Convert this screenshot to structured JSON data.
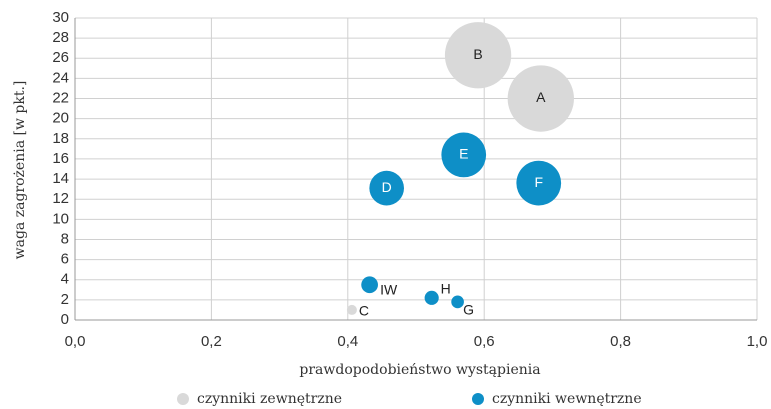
{
  "chart_data": {
    "type": "bubble",
    "xlabel": "prawdopodobieństwo wystąpienia",
    "ylabel": "waga zagrożenia [w pkt.]",
    "xlim": [
      0,
      1
    ],
    "ylim": [
      0,
      30
    ],
    "xticks": [
      {
        "value": 0,
        "label": "0,0"
      },
      {
        "value": 0.2,
        "label": "0,2"
      },
      {
        "value": 0.4,
        "label": "0,4"
      },
      {
        "value": 0.6,
        "label": "0,6"
      },
      {
        "value": 0.8,
        "label": "0,8"
      },
      {
        "value": 1,
        "label": "1,0"
      }
    ],
    "yticks": [
      0,
      2,
      4,
      6,
      8,
      10,
      12,
      14,
      16,
      18,
      20,
      22,
      24,
      26,
      28,
      30
    ],
    "grid": true,
    "legend": "bottom",
    "series": [
      {
        "name": "czynniki zewnętrzne",
        "color": "#d9d9d9",
        "labels": [
          "A",
          "B",
          "C"
        ],
        "x": [
          0.683,
          0.591,
          0.406
        ],
        "values": [
          22.0,
          26.3,
          1.0
        ],
        "sizes": [
          11,
          11,
          0.25
        ]
      },
      {
        "name": "czynniki wewnętrzne",
        "color": "#0e8fc7",
        "labels": [
          "D",
          "E",
          "F",
          "IW",
          "H",
          "G"
        ],
        "x": [
          0.457,
          0.57,
          0.68,
          0.432,
          0.523,
          0.561
        ],
        "values": [
          13.1,
          16.4,
          13.6,
          3.5,
          2.2,
          1.8
        ],
        "sizes": [
          3,
          5,
          5,
          0.7,
          0.5,
          0.4
        ]
      }
    ]
  }
}
